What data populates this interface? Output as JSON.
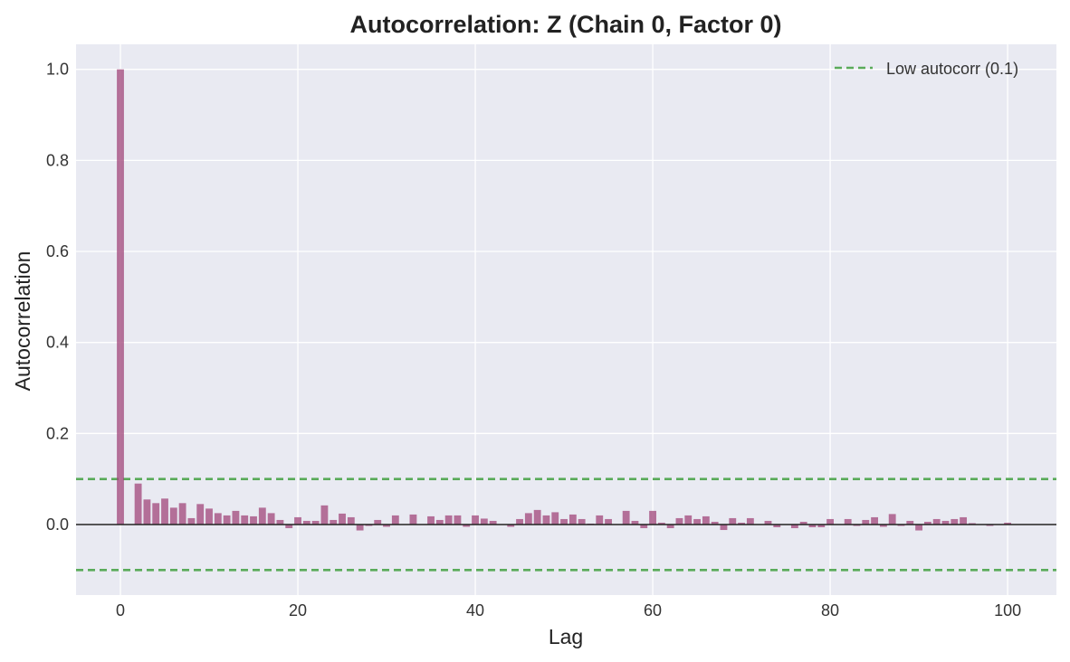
{
  "chart_data": {
    "type": "bar",
    "title": "Autocorrelation: Z (Chain 0, Factor 0)",
    "xlabel": "Lag",
    "ylabel": "Autocorrelation",
    "xlim": [
      -5,
      105.5
    ],
    "ylim": [
      -0.155,
      1.055
    ],
    "xticks": [
      0,
      20,
      40,
      60,
      80,
      100
    ],
    "yticks": [
      0.0,
      0.2,
      0.4,
      0.6,
      0.8,
      1.0
    ],
    "xtick_labels": [
      "0",
      "20",
      "40",
      "60",
      "80",
      "100"
    ],
    "ytick_labels": [
      "0.0",
      "0.2",
      "0.4",
      "0.6",
      "0.8",
      "1.0"
    ],
    "grid": true,
    "bar_color": "#a0457a",
    "zero_line_color": "#222222",
    "threshold_color": "#5aab5a",
    "plot_background": "#e9eaf2",
    "thresholds": [
      0.1,
      -0.1
    ],
    "legend": {
      "position": "top-right",
      "entries": [
        {
          "label": "Low autocorr (0.1)",
          "style": "dashed",
          "color": "#5aab5a"
        }
      ]
    },
    "lags": [
      0,
      1,
      2,
      3,
      4,
      5,
      6,
      7,
      8,
      9,
      10,
      11,
      12,
      13,
      14,
      15,
      16,
      17,
      18,
      19,
      20,
      21,
      22,
      23,
      24,
      25,
      26,
      27,
      28,
      29,
      30,
      31,
      32,
      33,
      34,
      35,
      36,
      37,
      38,
      39,
      40,
      41,
      42,
      43,
      44,
      45,
      46,
      47,
      48,
      49,
      50,
      51,
      52,
      53,
      54,
      55,
      56,
      57,
      58,
      59,
      60,
      61,
      62,
      63,
      64,
      65,
      66,
      67,
      68,
      69,
      70,
      71,
      72,
      73,
      74,
      75,
      76,
      77,
      78,
      79,
      80,
      81,
      82,
      83,
      84,
      85,
      86,
      87,
      88,
      89,
      90,
      91,
      92,
      93,
      94,
      95,
      96,
      97,
      98,
      99,
      100,
      101
    ],
    "values": [
      1.0,
      0.0,
      0.09,
      0.055,
      0.047,
      0.057,
      0.037,
      0.047,
      0.014,
      0.045,
      0.035,
      0.025,
      0.02,
      0.03,
      0.02,
      0.018,
      0.037,
      0.025,
      0.01,
      -0.008,
      0.016,
      0.008,
      0.008,
      0.042,
      0.01,
      0.024,
      0.016,
      -0.013,
      -0.003,
      0.01,
      -0.005,
      0.02,
      0.0,
      0.022,
      0.0,
      0.018,
      0.01,
      0.02,
      0.02,
      -0.005,
      0.02,
      0.013,
      0.008,
      0.0,
      -0.005,
      0.012,
      0.025,
      0.032,
      0.02,
      0.027,
      0.012,
      0.022,
      0.012,
      0.002,
      0.02,
      0.012,
      0.0,
      0.03,
      0.008,
      -0.008,
      0.03,
      0.004,
      -0.008,
      0.014,
      0.02,
      0.012,
      0.018,
      0.006,
      -0.012,
      0.014,
      0.004,
      0.014,
      0.0,
      0.008,
      -0.006,
      0.0,
      -0.008,
      0.006,
      -0.006,
      -0.006,
      0.012,
      0.0,
      0.012,
      -0.003,
      0.01,
      0.016,
      -0.005,
      0.023,
      -0.003,
      0.008,
      -0.013,
      0.006,
      0.012,
      0.008,
      0.012,
      0.016,
      0.003,
      0.0,
      -0.003,
      0.0,
      0.004,
      0.0
    ]
  }
}
